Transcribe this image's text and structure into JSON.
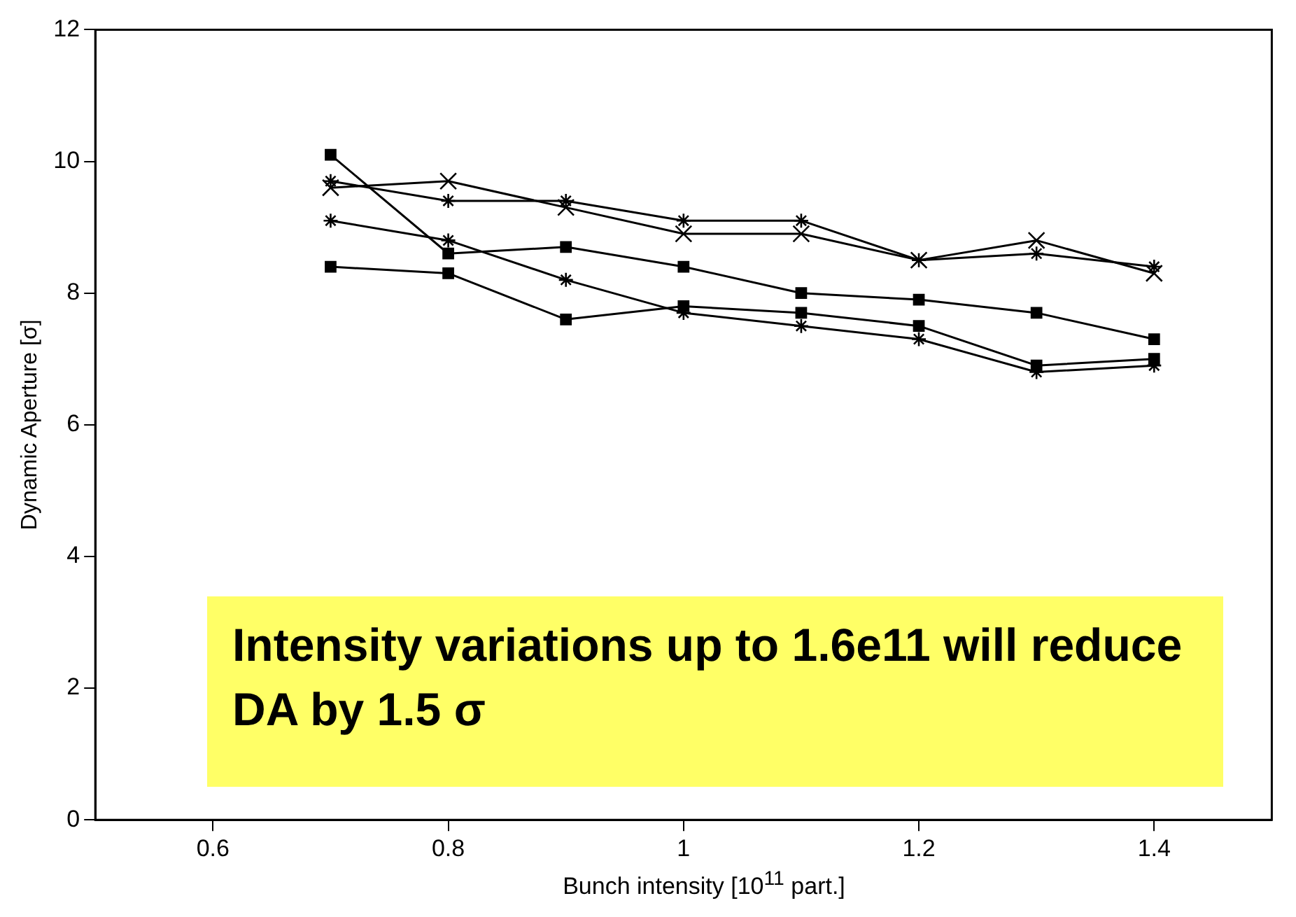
{
  "chart_data": {
    "type": "line",
    "xlabel": "Bunch intensity [10$^{11}$ part.]",
    "ylabel": "Dynamic Aperture [σ]",
    "x": [
      0.7,
      0.8,
      0.9,
      1.0,
      1.1,
      1.2,
      1.3,
      1.4
    ],
    "series": [
      {
        "color": "#000000",
        "marker": "square",
        "values": [
          10.1,
          8.6,
          8.7,
          8.4,
          8.0,
          7.9,
          7.7,
          7.3
        ]
      },
      {
        "color": "#000000",
        "marker": "cross",
        "values": [
          9.7,
          9.4,
          9.4,
          9.1,
          9.1,
          8.5,
          8.6,
          8.4
        ]
      },
      {
        "color": "#000000",
        "marker": "x",
        "values": [
          9.6,
          9.7,
          9.3,
          8.9,
          8.9,
          8.5,
          8.8,
          8.3
        ]
      },
      {
        "color": "#000000",
        "marker": "cross",
        "values": [
          9.1,
          8.8,
          8.2,
          7.7,
          7.5,
          7.3,
          6.8,
          6.9
        ]
      },
      {
        "color": "#000000",
        "marker": "square",
        "values": [
          8.4,
          8.3,
          7.6,
          7.8,
          7.7,
          7.5,
          6.9,
          7.0
        ]
      }
    ],
    "xlim": [
      0.5,
      1.5
    ],
    "xticks": [
      0.6,
      0.8,
      1,
      1.2,
      1.4
    ],
    "ylim": [
      0,
      12
    ],
    "yticks": [
      0,
      2,
      4,
      6,
      8,
      10,
      12
    ],
    "grid": false,
    "legend": false,
    "annotations": [
      "Intensity variations up to 1.6e11 will reduce DA by 1.5 σ"
    ]
  }
}
